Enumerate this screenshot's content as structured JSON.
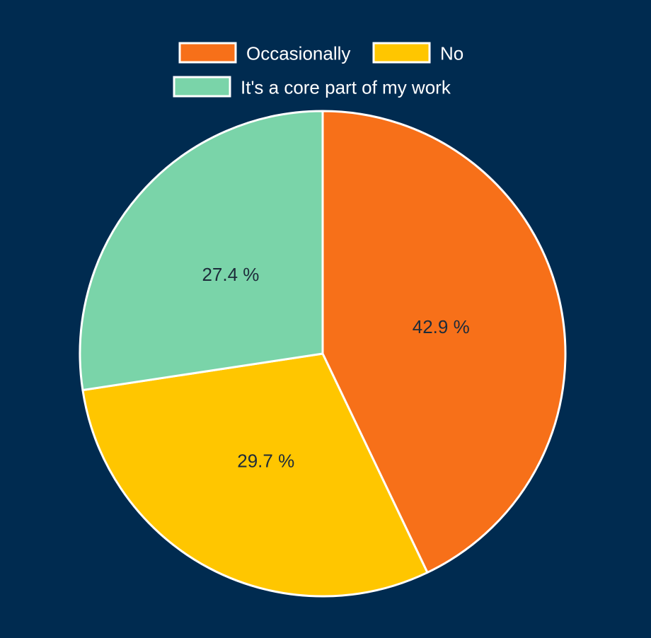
{
  "chart_data": {
    "type": "pie",
    "series": [
      {
        "categories": [
          "Occasionally",
          "No",
          "It's a core part of my work"
        ],
        "values": [
          42.9,
          29.7,
          27.4
        ],
        "labels": [
          "42.9 %",
          "29.7 %",
          "27.4 %"
        ],
        "colors": [
          "#f77019",
          "#ffc600",
          "#7ad4a9"
        ]
      }
    ],
    "legend": {
      "position": "top",
      "entries": [
        "Occasionally",
        "No",
        "It's a core part of my work"
      ]
    },
    "background_color": "#002b50",
    "slice_border_color": "#ffffff"
  }
}
